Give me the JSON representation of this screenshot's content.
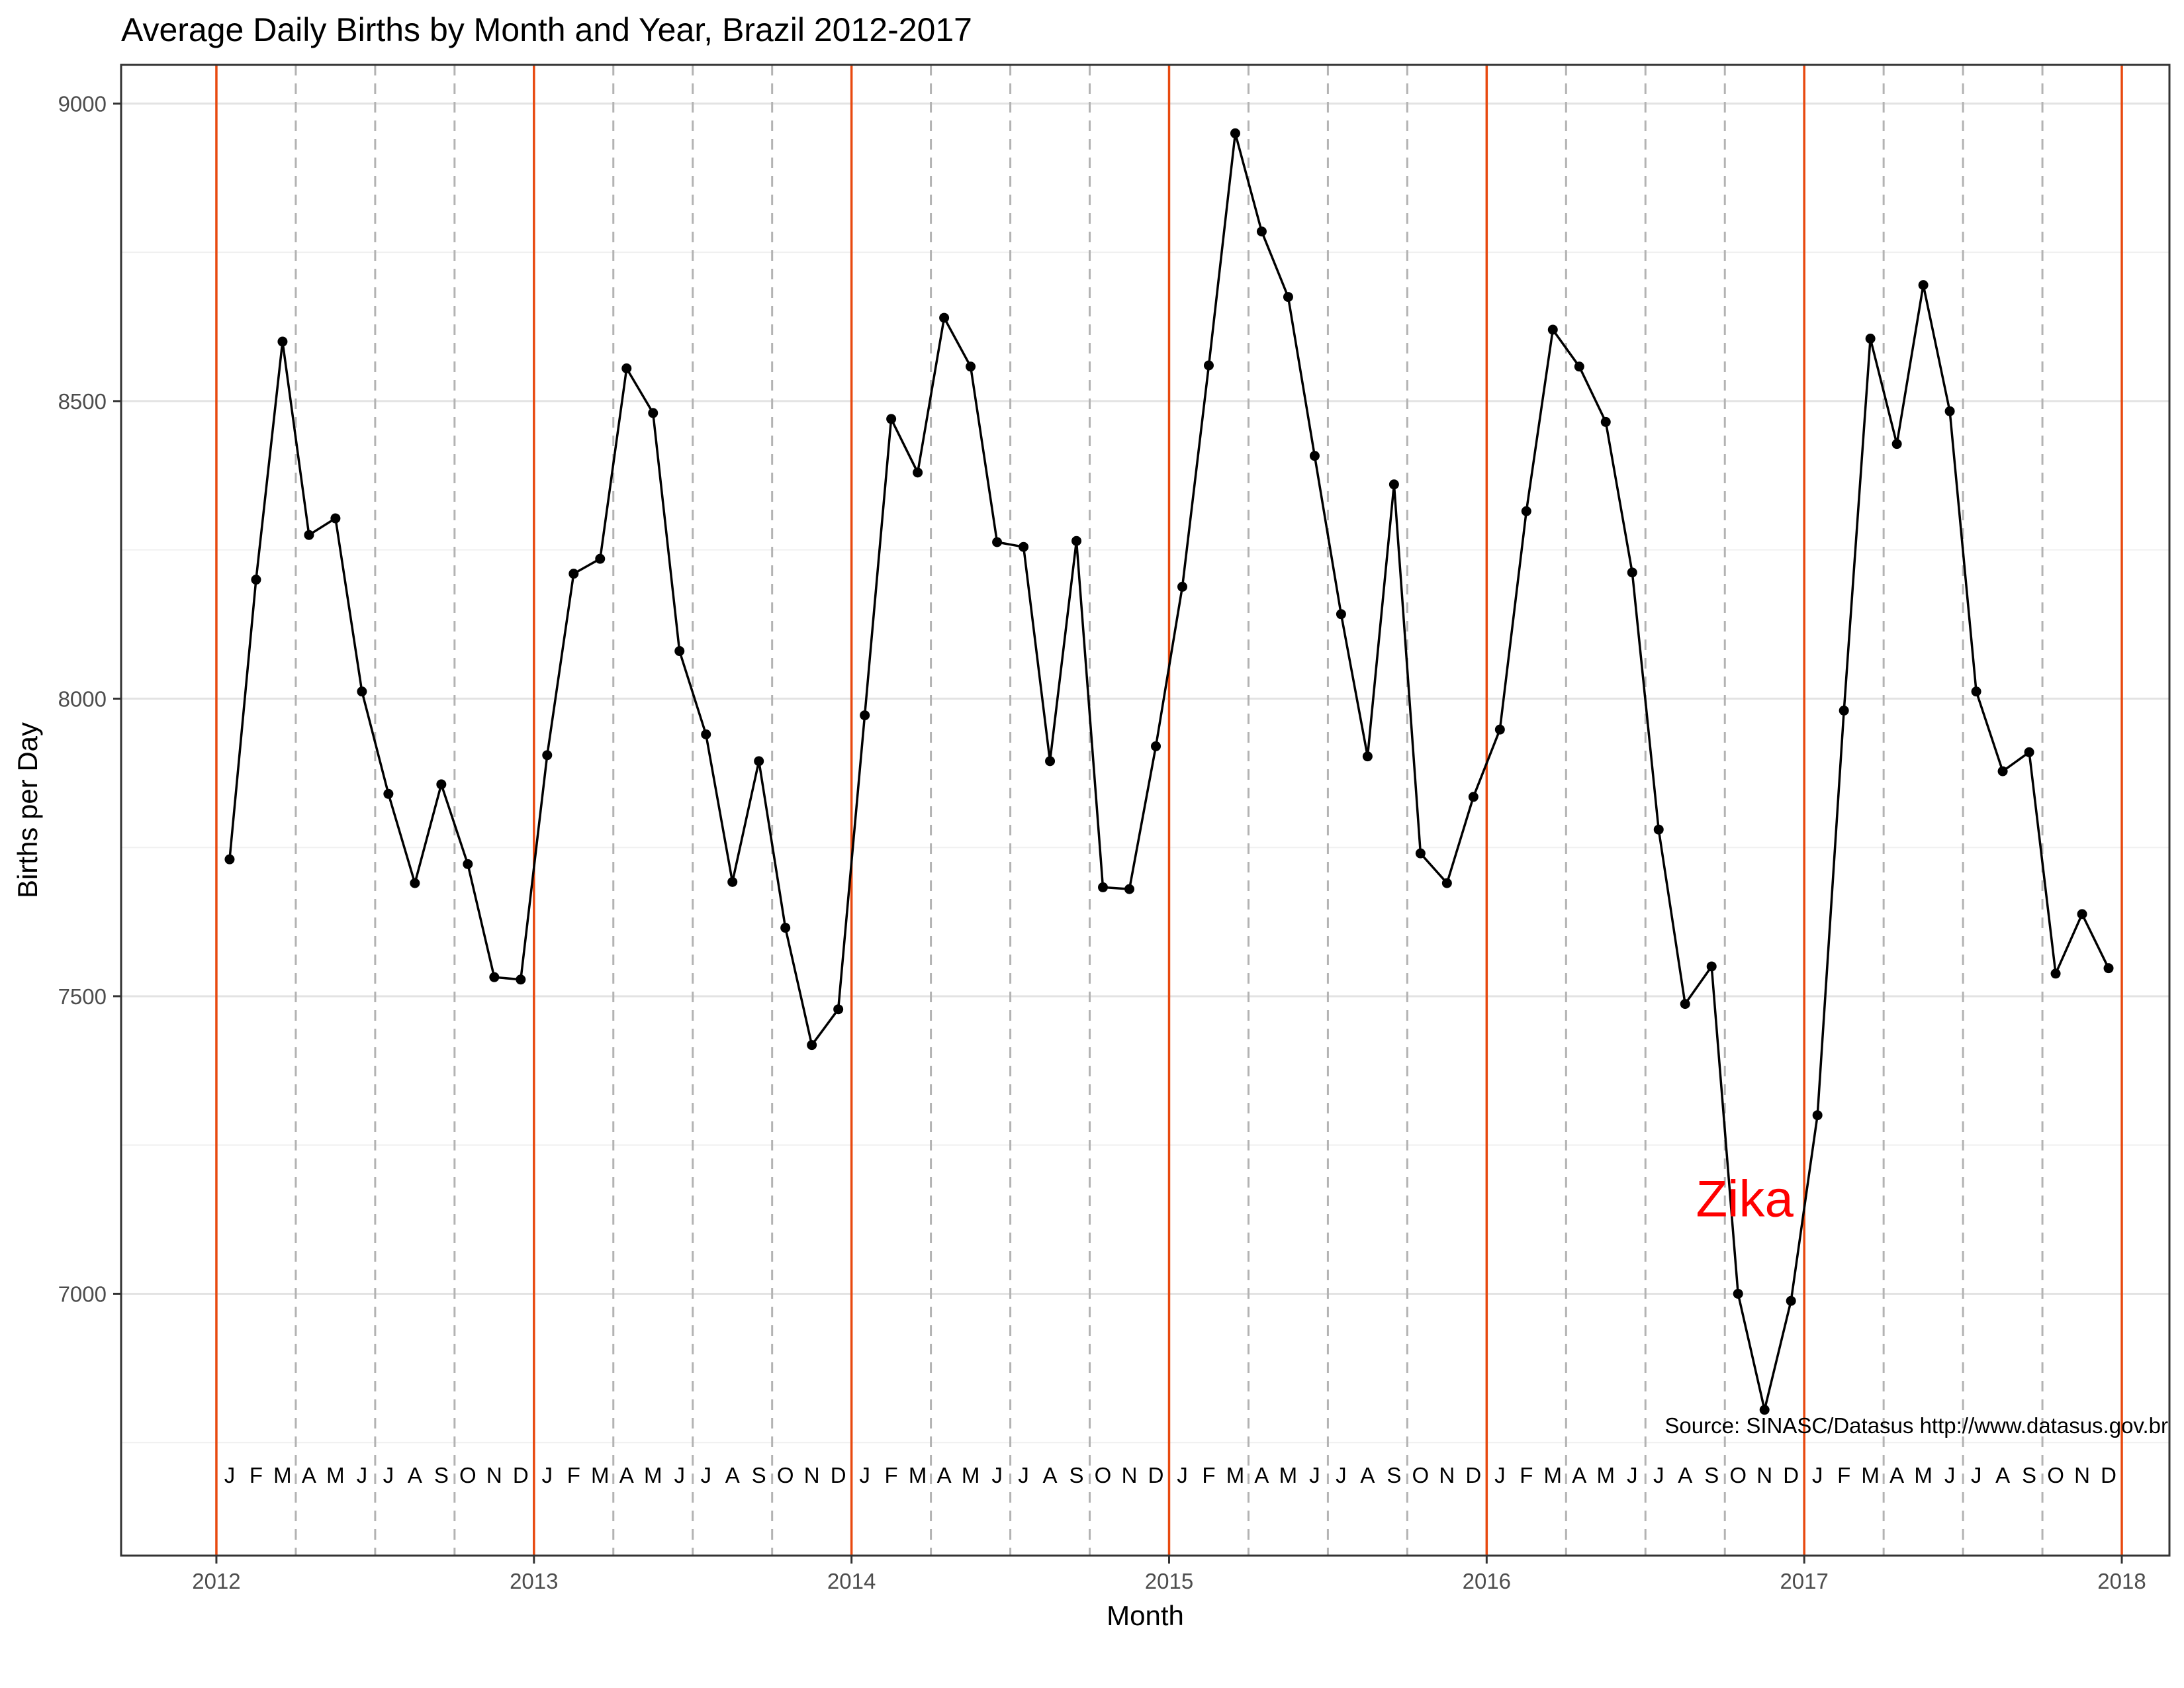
{
  "chart_data": {
    "type": "line",
    "title": "Average Daily Births by Month and Year, Brazil 2012-2017",
    "xlabel": "Month",
    "ylabel": "Births per Day",
    "caption": "Source: SINASC/Datasus http://www.datasus.gov.br",
    "annotation": {
      "text": "Zika",
      "color": "#FF0000"
    },
    "xlim": [
      2011.7,
      2018.15
    ],
    "ylim": [
      6560,
      9065
    ],
    "x_ticks": [
      2012,
      2013,
      2014,
      2015,
      2016,
      2017,
      2018
    ],
    "x_tick_labels": [
      "2012",
      "2013",
      "2014",
      "2015",
      "2016",
      "2017",
      "2018"
    ],
    "y_ticks": [
      7000,
      7500,
      8000,
      8500,
      9000
    ],
    "y_tick_labels": [
      "7000",
      "7500",
      "8000",
      "8500",
      "9000"
    ],
    "month_letters": [
      "J",
      "F",
      "M",
      "A",
      "M",
      "J",
      "J",
      "A",
      "S",
      "O",
      "N",
      "D"
    ],
    "year_line_color": "#E8490F",
    "quarter_line_color": "#B3B3B3",
    "line_color": "#000000",
    "grid": true,
    "series": [
      {
        "years": [
          2012,
          2013,
          2014,
          2015,
          2016,
          2017
        ],
        "values": [
          7730,
          8200,
          8600,
          8275,
          8303,
          8012,
          7840,
          7690,
          7856,
          7722,
          7532,
          7528,
          7905,
          8210,
          8235,
          8555,
          8480,
          8080,
          7940,
          7692,
          7895,
          7615,
          7418,
          7478,
          7972,
          8470,
          8380,
          8640,
          8558,
          8263,
          8255,
          7895,
          8265,
          7683,
          7680,
          7920,
          8188,
          8560,
          8950,
          8785,
          8675,
          8408,
          8142,
          7903,
          8360,
          7740,
          7690,
          7835,
          7948,
          8315,
          8620,
          8558,
          8465,
          8212,
          7780,
          7487,
          7550,
          7000,
          6805,
          6988,
          7300,
          7980,
          8605,
          8428,
          8695,
          8483,
          8012,
          7878,
          7910,
          7538,
          7638,
          7547
        ]
      }
    ]
  }
}
